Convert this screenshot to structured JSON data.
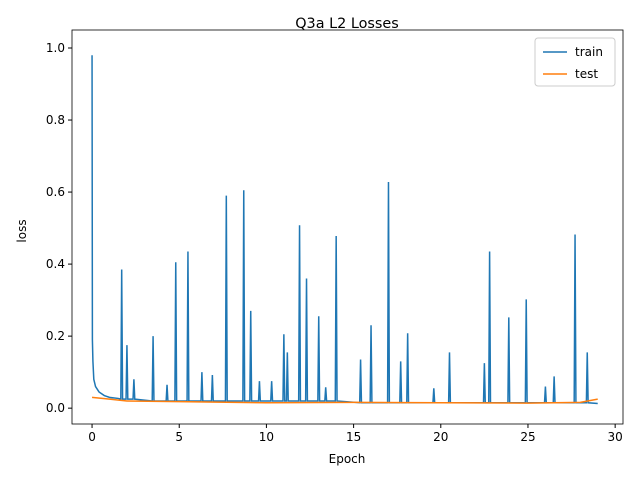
{
  "chart_data": {
    "type": "line",
    "title": "Q3a L2 Losses",
    "xlabel": "Epoch",
    "ylabel": "loss",
    "xlim": [
      -1.15,
      30.45
    ],
    "ylim": [
      -0.044,
      1.05
    ],
    "xticks": [
      0,
      5,
      10,
      15,
      20,
      25,
      30
    ],
    "yticks": [
      {
        "value": 0,
        "label": "0.0"
      },
      0.2,
      0.4,
      0.6,
      0.8,
      {
        "value": 1,
        "label": "1.0"
      }
    ],
    "legend": "upper right",
    "series": [
      {
        "name": "train",
        "color": "#1f77b4",
        "x": [
          0,
          0.02,
          0.05,
          0.1,
          0.2,
          0.4,
          0.7,
          1.0,
          1.5,
          1.65,
          1.7,
          1.75,
          1.95,
          2.0,
          2.05,
          2.35,
          2.4,
          2.45,
          3.45,
          3.5,
          3.55,
          4.25,
          4.3,
          4.35,
          4.75,
          4.8,
          4.85,
          5.45,
          5.5,
          5.55,
          6.25,
          6.3,
          6.35,
          6.85,
          6.9,
          6.95,
          7.65,
          7.7,
          7.75,
          8.65,
          8.7,
          8.75,
          9.05,
          9.1,
          9.15,
          9.55,
          9.6,
          9.65,
          10.25,
          10.3,
          10.35,
          10.95,
          11.0,
          11.05,
          11.15,
          11.2,
          11.25,
          11.85,
          11.9,
          11.95,
          12.25,
          12.3,
          12.35,
          12.95,
          13.0,
          13.05,
          13.35,
          13.4,
          13.45,
          13.95,
          14.0,
          14.05,
          15.35,
          15.4,
          15.45,
          15.95,
          16.0,
          16.05,
          16.95,
          17.0,
          17.05,
          17.65,
          17.7,
          17.75,
          18.05,
          18.1,
          18.15,
          19.55,
          19.6,
          19.65,
          20.45,
          20.5,
          20.55,
          22.45,
          22.5,
          22.55,
          22.75,
          22.8,
          22.85,
          23.85,
          23.9,
          23.95,
          24.85,
          24.9,
          24.95,
          25.95,
          26.0,
          26.05,
          26.45,
          26.5,
          26.55,
          27.65,
          27.7,
          27.75,
          28.35,
          28.4,
          28.45,
          29.0
        ],
        "values": [
          0.98,
          0.19,
          0.13,
          0.08,
          0.06,
          0.045,
          0.035,
          0.03,
          0.027,
          0.025,
          0.385,
          0.025,
          0.025,
          0.175,
          0.025,
          0.025,
          0.08,
          0.025,
          0.02,
          0.2,
          0.02,
          0.02,
          0.065,
          0.02,
          0.02,
          0.405,
          0.02,
          0.02,
          0.435,
          0.02,
          0.02,
          0.1,
          0.02,
          0.02,
          0.092,
          0.02,
          0.02,
          0.59,
          0.02,
          0.02,
          0.605,
          0.02,
          0.02,
          0.27,
          0.02,
          0.02,
          0.075,
          0.02,
          0.02,
          0.075,
          0.02,
          0.02,
          0.205,
          0.02,
          0.02,
          0.155,
          0.02,
          0.02,
          0.508,
          0.02,
          0.02,
          0.36,
          0.02,
          0.02,
          0.255,
          0.02,
          0.02,
          0.058,
          0.02,
          0.02,
          0.478,
          0.02,
          0.015,
          0.135,
          0.015,
          0.015,
          0.23,
          0.015,
          0.015,
          0.628,
          0.015,
          0.015,
          0.13,
          0.015,
          0.015,
          0.208,
          0.015,
          0.015,
          0.055,
          0.015,
          0.015,
          0.155,
          0.015,
          0.015,
          0.125,
          0.015,
          0.015,
          0.435,
          0.015,
          0.015,
          0.252,
          0.015,
          0.015,
          0.302,
          0.015,
          0.015,
          0.06,
          0.015,
          0.015,
          0.088,
          0.015,
          0.015,
          0.482,
          0.015,
          0.015,
          0.155,
          0.015,
          0.013
        ]
      },
      {
        "name": "test",
        "color": "#ff7f0e",
        "x": [
          0,
          1,
          2,
          5,
          10,
          15,
          20,
          25,
          28,
          29
        ],
        "values": [
          0.03,
          0.025,
          0.02,
          0.018,
          0.015,
          0.016,
          0.015,
          0.014,
          0.016,
          0.025
        ]
      }
    ]
  }
}
